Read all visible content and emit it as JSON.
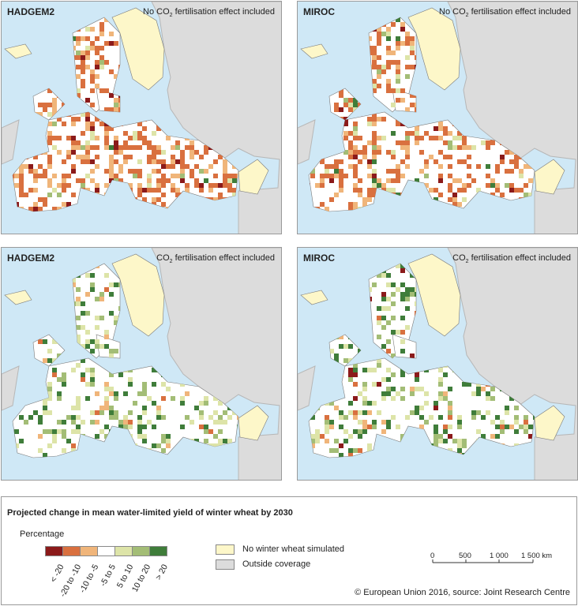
{
  "panels": [
    {
      "model": "HADGEM2",
      "note_pre": "No CO",
      "note_sub": "2",
      "note_post": " fertilisation effect included"
    },
    {
      "model": "MIROC",
      "note_pre": "No CO",
      "note_sub": "2",
      "note_post": " fertilisation effect included"
    },
    {
      "model": "HADGEM2",
      "note_pre": "CO",
      "note_sub": "2",
      "note_post": " fertilisation effect included"
    },
    {
      "model": "MIROC",
      "note_pre": "CO",
      "note_sub": "2",
      "note_post": " fertilisation effect included"
    }
  ],
  "legend": {
    "title": "Projected change in mean water-limited yield of winter wheat by 2030",
    "subtitle": "Percentage",
    "classes": [
      {
        "label": "< -20",
        "color": "#8b1a1a"
      },
      {
        "label": "-20 to -10",
        "color": "#d9703f"
      },
      {
        "label": "-10 to -5",
        "color": "#f0b57a"
      },
      {
        "label": "-5 to 5",
        "color": "#ffffff"
      },
      {
        "label": "5 to 10",
        "color": "#dde4a8"
      },
      {
        "label": "10 to 20",
        "color": "#a3bd76"
      },
      {
        "label": "> 20",
        "color": "#3f7d3a"
      }
    ],
    "categories": [
      {
        "label": "No winter wheat simulated",
        "color": "#fdf7c9"
      },
      {
        "label": "Outside coverage",
        "color": "#dcdcdc"
      }
    ],
    "scale": {
      "ticks": [
        "0",
        "500",
        "1 000",
        "1 500 km"
      ]
    },
    "credit": "© European Union 2016, source: Joint Research Centre"
  },
  "colors": {
    "sea": "#cfe8f6",
    "outside": "#dcdcdc",
    "no_wheat": "#fdf7c9",
    "border": "#9a9a9a"
  }
}
